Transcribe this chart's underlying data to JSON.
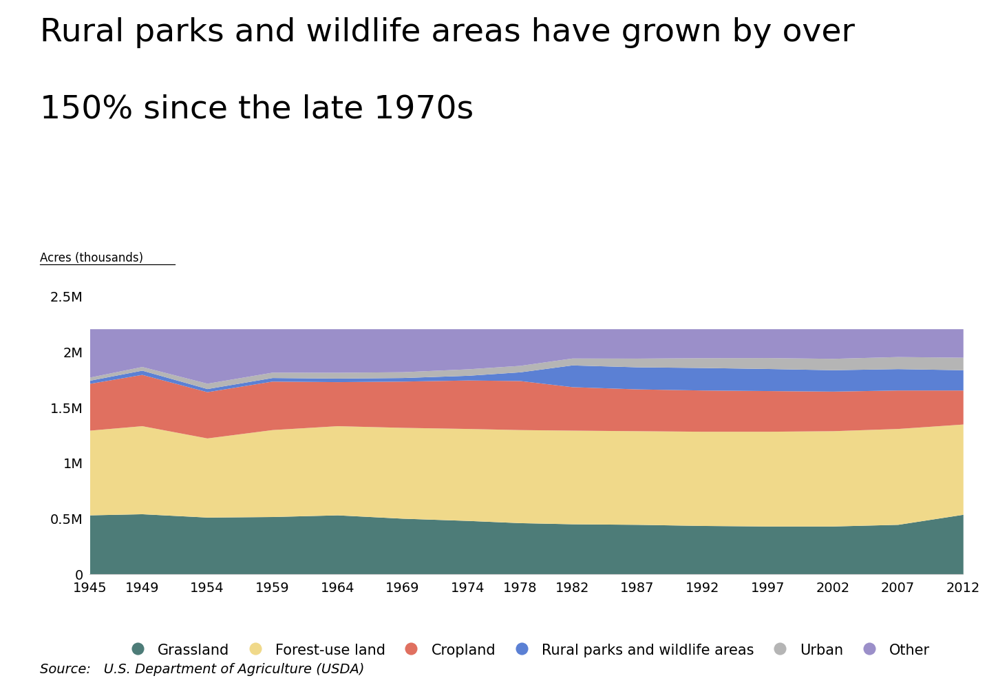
{
  "title_line1": "Rural parks and wildlife areas have grown by over",
  "title_line2": "150% since the late 1970s",
  "ylabel": "Acres (thousands)",
  "source": "Source:   U.S. Department of Agriculture (USDA)",
  "years": [
    1945,
    1949,
    1954,
    1959,
    1964,
    1969,
    1974,
    1978,
    1982,
    1987,
    1992,
    1997,
    2002,
    2007,
    2012
  ],
  "grassland": [
    530,
    540,
    510,
    515,
    530,
    500,
    480,
    460,
    450,
    445,
    435,
    430,
    430,
    445,
    535
  ],
  "forest_use": [
    760,
    790,
    710,
    780,
    800,
    815,
    825,
    835,
    840,
    840,
    845,
    850,
    855,
    860,
    810
  ],
  "cropland": [
    420,
    460,
    415,
    435,
    395,
    415,
    435,
    440,
    390,
    375,
    370,
    365,
    355,
    345,
    305
  ],
  "rural_parks": [
    28,
    38,
    28,
    32,
    32,
    32,
    42,
    78,
    195,
    198,
    202,
    198,
    192,
    192,
    182
  ],
  "urban": [
    28,
    33,
    48,
    48,
    52,
    52,
    58,
    58,
    62,
    78,
    88,
    98,
    102,
    108,
    112
  ],
  "other": [
    434,
    339,
    489,
    390,
    391,
    386,
    360,
    329,
    263,
    264,
    260,
    259,
    266,
    250,
    256
  ],
  "colors": {
    "grassland": "#4d7c78",
    "forest_use": "#f0d98a",
    "cropland": "#e07060",
    "rural_parks": "#5b80d4",
    "urban": "#b5b5b5",
    "other": "#9b8fc9"
  },
  "ylim_max": 2500,
  "ytick_vals": [
    0,
    500,
    1000,
    1500,
    2000,
    2500
  ],
  "ytick_labels": [
    "0",
    "0.5M",
    "1M",
    "1.5M",
    "2M",
    "2.5M"
  ],
  "background_color": "#ffffff",
  "title_fontsize": 34,
  "legend_fontsize": 15,
  "tick_fontsize": 14,
  "ylabel_fontsize": 12,
  "source_fontsize": 14
}
